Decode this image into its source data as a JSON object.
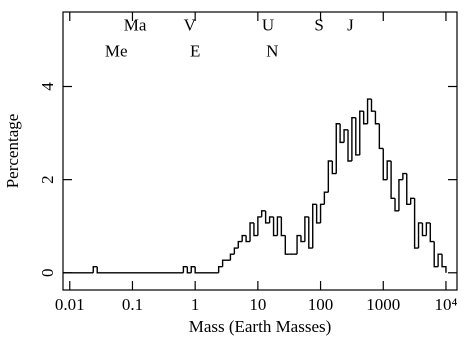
{
  "chart_data": {
    "type": "histogram",
    "xscale": "log",
    "color": "#000000",
    "xlabel": "Mass (Earth Masses)",
    "ylabel": "Percentage",
    "xlim": [
      0.0078,
      15000
    ],
    "ylim": [
      -0.37,
      5.6
    ],
    "xticks": [
      0.01,
      0.1,
      1,
      10,
      100,
      1000,
      {
        "value": 10000,
        "label": "10⁴"
      }
    ],
    "yticks": [
      0,
      2,
      4
    ],
    "annotations": [
      {
        "text": "Ma",
        "x": 0.11,
        "y": 5.29
      },
      {
        "text": "V",
        "x": 0.82,
        "y": 5.29
      },
      {
        "text": "U",
        "x": 14.5,
        "y": 5.29
      },
      {
        "text": "S",
        "x": 95,
        "y": 5.29
      },
      {
        "text": "J",
        "x": 300,
        "y": 5.29
      },
      {
        "text": "Me",
        "x": 0.055,
        "y": 4.73
      },
      {
        "text": "E",
        "x": 1,
        "y": 4.73
      },
      {
        "text": "N",
        "x": 17,
        "y": 4.73
      }
    ],
    "bins": [
      0.0078,
      0.0237,
      0.0274,
      0.649,
      0.75,
      0.866,
      1,
      2.37,
      2.74,
      3.16,
      3.65,
      4.22,
      4.87,
      5.62,
      6.49,
      7.5,
      8.66,
      10,
      11.5,
      13.3,
      15.4,
      17.8,
      20.5,
      23.7,
      27.4,
      31.6,
      36.5,
      42.2,
      48.7,
      56.2,
      64.9,
      75,
      86.6,
      100,
      115,
      133,
      154,
      178,
      205,
      237,
      274,
      316,
      365,
      422,
      487,
      562,
      649,
      750,
      866,
      1000,
      1155,
      1334,
      1540,
      1778,
      2054,
      2371,
      2738,
      3162,
      3652,
      4217,
      4870,
      5623,
      6494,
      7499,
      8660,
      10000
    ],
    "values": [
      0,
      0.13,
      0,
      0.13,
      0,
      0.13,
      0,
      0.13,
      0.27,
      0.27,
      0.4,
      0.53,
      0.67,
      0.8,
      0.67,
      1.07,
      0.8,
      1.2,
      1.33,
      1.07,
      1.2,
      0.8,
      1.2,
      0.8,
      0.4,
      0.4,
      0.4,
      0.8,
      0.67,
      1.2,
      0.53,
      1.47,
      1.07,
      1.47,
      1.73,
      2.4,
      2.13,
      3.2,
      2.8,
      3.07,
      2.4,
      3.33,
      2.53,
      3.47,
      3.2,
      3.73,
      3.47,
      3.2,
      2.67,
      2.0,
      2.4,
      1.6,
      1.33,
      2.0,
      2.13,
      1.47,
      1.6,
      0.53,
      1.07,
      0.8,
      1.07,
      0.67,
      0.13,
      0.4,
      0.13
    ]
  }
}
